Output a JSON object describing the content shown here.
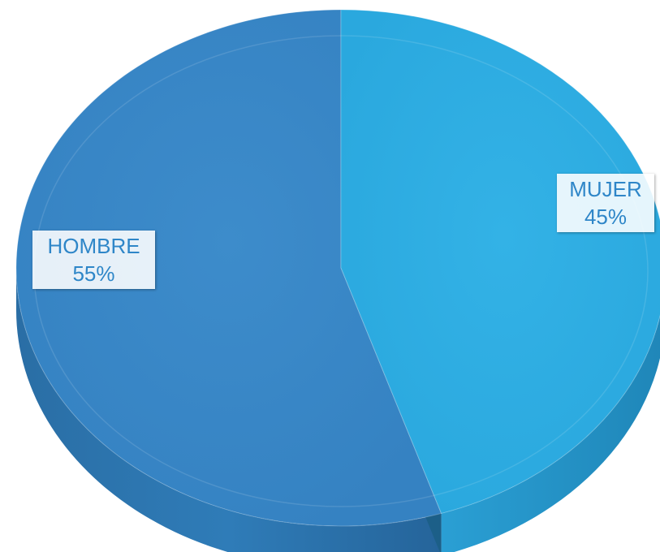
{
  "chart_data": {
    "type": "pie",
    "title": "",
    "categories": [
      "HOMBRE",
      "MUJER"
    ],
    "values": [
      55,
      45
    ],
    "labels": [
      "HOMBRE\n55%",
      "MUJER\n45%"
    ],
    "percent_labels": [
      "55%",
      "45%"
    ],
    "colors": [
      "#3a88c8",
      "#2eaee2"
    ],
    "label_color": "#2e86c8",
    "style": "3d",
    "legend": "none"
  }
}
